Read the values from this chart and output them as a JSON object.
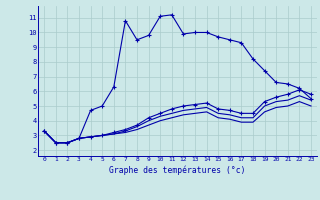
{
  "xlabel": "Graphe des températures (°c)",
  "bg_color": "#cce8e8",
  "grid_color": "#aacccc",
  "line_color": "#0000aa",
  "x_ticks": [
    0,
    1,
    2,
    3,
    4,
    5,
    6,
    7,
    8,
    9,
    10,
    11,
    12,
    13,
    14,
    15,
    16,
    17,
    18,
    19,
    20,
    21,
    22,
    23
  ],
  "y_ticks": [
    2,
    3,
    4,
    5,
    6,
    7,
    8,
    9,
    10,
    11
  ],
  "ylim": [
    1.6,
    11.8
  ],
  "xlim": [
    -0.5,
    23.5
  ],
  "series1": [
    3.3,
    2.5,
    2.5,
    2.8,
    4.7,
    5.0,
    6.3,
    10.8,
    9.5,
    9.8,
    11.1,
    11.2,
    9.9,
    10.0,
    10.0,
    9.7,
    9.5,
    9.3,
    8.2,
    7.4,
    6.6,
    6.5,
    6.2,
    5.5
  ],
  "series2": [
    3.3,
    2.5,
    2.5,
    2.8,
    2.9,
    3.0,
    3.2,
    3.4,
    3.7,
    4.2,
    4.5,
    4.8,
    5.0,
    5.1,
    5.2,
    4.8,
    4.7,
    4.5,
    4.5,
    5.3,
    5.6,
    5.8,
    6.1,
    5.8
  ],
  "series3": [
    3.3,
    2.5,
    2.5,
    2.8,
    2.9,
    3.0,
    3.1,
    3.3,
    3.6,
    4.0,
    4.3,
    4.5,
    4.7,
    4.8,
    4.9,
    4.5,
    4.4,
    4.2,
    4.2,
    5.0,
    5.3,
    5.4,
    5.7,
    5.4
  ],
  "series4": [
    3.3,
    2.5,
    2.5,
    2.8,
    2.9,
    3.0,
    3.1,
    3.2,
    3.4,
    3.7,
    4.0,
    4.2,
    4.4,
    4.5,
    4.6,
    4.2,
    4.1,
    3.9,
    3.9,
    4.6,
    4.9,
    5.0,
    5.3,
    5.0
  ]
}
